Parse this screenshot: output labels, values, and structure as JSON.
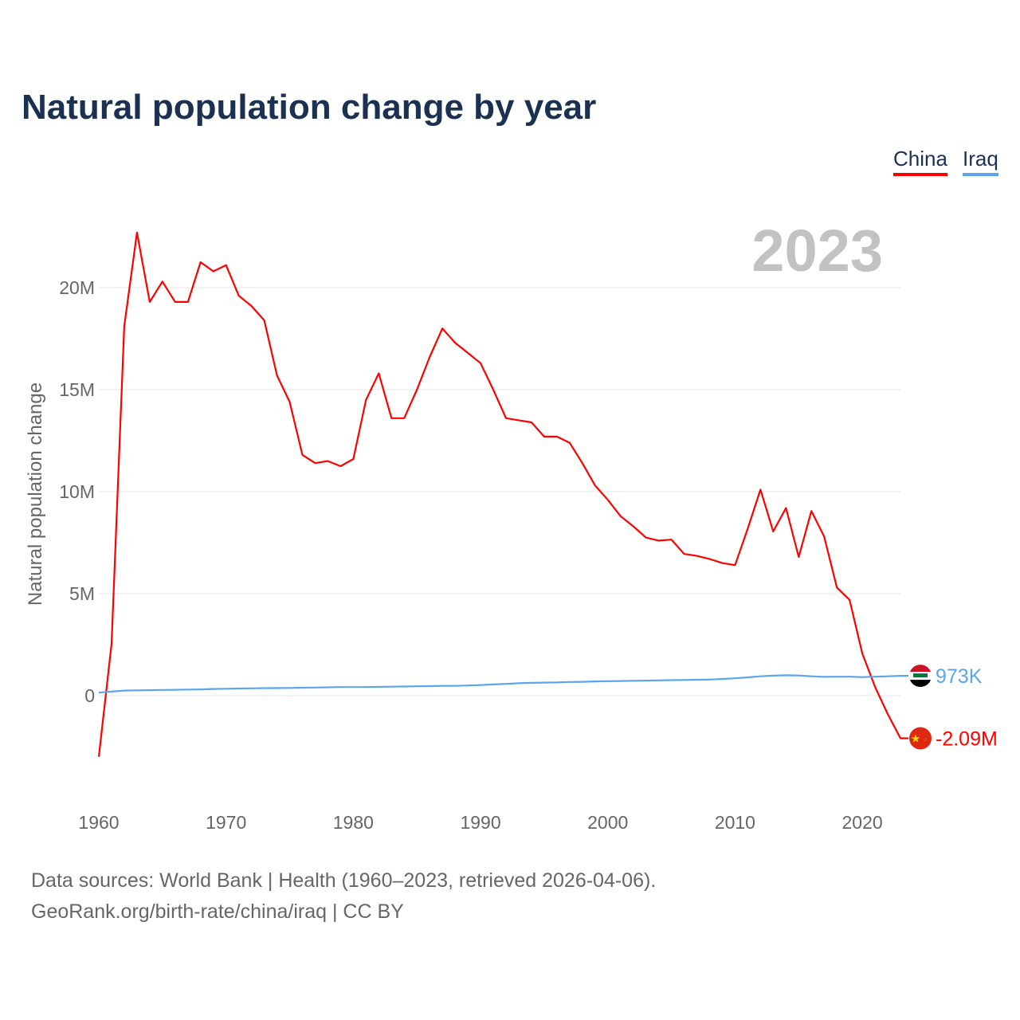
{
  "title": "Natural population change by year",
  "footer": {
    "line1": "Data sources: World Bank | Health (1960–2023, retrieved 2026-04-06).",
    "line2": "GeoRank.org/birth-rate/china/iraq | CC BY"
  },
  "chart_data": {
    "type": "line",
    "title": "Natural population change by year",
    "ylabel": "Natural population change",
    "xlabel": "",
    "year_label": "2023",
    "x": [
      1960,
      1961,
      1962,
      1963,
      1964,
      1965,
      1966,
      1967,
      1968,
      1969,
      1970,
      1971,
      1972,
      1973,
      1974,
      1975,
      1976,
      1977,
      1978,
      1979,
      1980,
      1981,
      1982,
      1983,
      1984,
      1985,
      1986,
      1987,
      1988,
      1989,
      1990,
      1991,
      1992,
      1993,
      1994,
      1995,
      1996,
      1997,
      1998,
      1999,
      2000,
      2001,
      2002,
      2003,
      2004,
      2005,
      2006,
      2007,
      2008,
      2009,
      2010,
      2011,
      2012,
      2013,
      2014,
      2015,
      2016,
      2017,
      2018,
      2019,
      2020,
      2021,
      2022,
      2023
    ],
    "xticks": [
      1960,
      1970,
      1980,
      1990,
      2000,
      2010,
      2020
    ],
    "xtick_labels": [
      "1960",
      "1970",
      "1980",
      "1990",
      "2000",
      "2010",
      "2020"
    ],
    "yticks": [
      0,
      5,
      10,
      15,
      20
    ],
    "ytick_labels": [
      "0",
      "5M",
      "10M",
      "15M",
      "20M"
    ],
    "xlim": [
      1960,
      2023
    ],
    "ylim": [
      -4.5,
      24
    ],
    "units": "millions",
    "grid": true,
    "legend_placement": "top-right",
    "series": [
      {
        "name": "China",
        "color": "#ff0000",
        "end_label": "-2.09M",
        "values": [
          -3.0,
          2.54,
          18.1,
          22.7,
          19.3,
          20.3,
          19.3,
          19.3,
          21.25,
          20.8,
          21.1,
          19.6,
          19.1,
          18.4,
          15.7,
          14.4,
          11.8,
          11.4,
          11.5,
          11.25,
          11.6,
          14.5,
          15.8,
          13.6,
          13.6,
          15.0,
          16.6,
          18.0,
          17.3,
          16.8,
          16.3,
          15.0,
          13.6,
          13.5,
          13.4,
          12.7,
          12.7,
          12.4,
          11.4,
          10.3,
          9.6,
          8.8,
          8.3,
          7.75,
          7.6,
          7.65,
          6.95,
          6.85,
          6.7,
          6.5,
          6.4,
          8.2,
          10.1,
          8.05,
          9.2,
          6.8,
          9.05,
          7.8,
          5.3,
          4.7,
          2.07,
          0.43,
          -0.9,
          -2.09
        ]
      },
      {
        "name": "Iraq",
        "color": "#5aa6ec",
        "end_label": "973K",
        "values": [
          0.15,
          0.2,
          0.25,
          0.26,
          0.27,
          0.28,
          0.29,
          0.3,
          0.31,
          0.33,
          0.34,
          0.35,
          0.36,
          0.37,
          0.37,
          0.38,
          0.39,
          0.4,
          0.41,
          0.42,
          0.42,
          0.42,
          0.43,
          0.44,
          0.45,
          0.46,
          0.47,
          0.48,
          0.48,
          0.5,
          0.52,
          0.55,
          0.58,
          0.61,
          0.63,
          0.64,
          0.65,
          0.67,
          0.68,
          0.7,
          0.71,
          0.72,
          0.73,
          0.74,
          0.75,
          0.76,
          0.77,
          0.78,
          0.79,
          0.82,
          0.85,
          0.9,
          0.95,
          0.98,
          1.0,
          0.99,
          0.95,
          0.92,
          0.93,
          0.93,
          0.91,
          0.93,
          0.95,
          0.973
        ]
      }
    ]
  }
}
